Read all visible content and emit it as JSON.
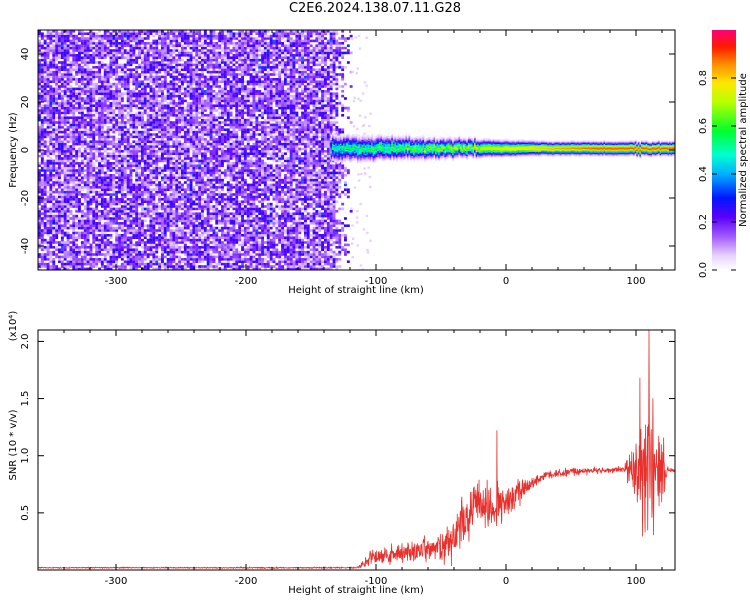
{
  "title": "C2E6.2024.138.07.11.G28",
  "colors": {
    "snr_line": "#e8302c",
    "spectrogram_noise": "#7a22e0",
    "background": "#ffffff",
    "axis": "#000000"
  },
  "chart_data": [
    {
      "type": "heatmap",
      "xlabel": "Height of straight line (km)",
      "ylabel": "Frequency (Hz)",
      "xlim": [
        -360,
        130
      ],
      "ylim": [
        -50,
        50
      ],
      "x_ticks": [
        -300,
        -200,
        -100,
        0,
        100
      ],
      "y_ticks": [
        -40,
        -20,
        0,
        20,
        40
      ],
      "colorbar": {
        "label": "Normalized spectral amplitude",
        "range": [
          0.0,
          1.0
        ],
        "ticks": [
          0.0,
          0.2,
          0.4,
          0.6,
          0.8
        ],
        "colormap": "rainbow (white - violet - blue - cyan - green - yellow - red - magenta)"
      },
      "features": {
        "broadband_noise_x_range": [
          -360,
          -120
        ],
        "noise_amplitude": 0.15,
        "signal_band_x_range": [
          -135,
          130
        ],
        "signal_center_hz": 0.5,
        "signal_halfwidth_hz": [
          4,
          2
        ],
        "signal_amplitude": [
          0.5,
          0.9
        ]
      }
    },
    {
      "type": "line",
      "xlabel": "Height of straight line (km)",
      "ylabel": "SNR (10 * v/v)",
      "y_multiplier": "(x10⁴)",
      "xlim": [
        -360,
        130
      ],
      "ylim": [
        0.0,
        2.1
      ],
      "x_ticks": [
        -300,
        -200,
        -100,
        0,
        100
      ],
      "y_ticks": [
        0.5,
        1.0,
        1.5,
        2.0
      ],
      "series": [
        {
          "envelope": [
            {
              "x": -360,
              "y": 0.02
            },
            {
              "x": -200,
              "y": 0.02
            },
            {
              "x": -115,
              "y": 0.02
            },
            {
              "x": -100,
              "y": 0.12
            },
            {
              "x": -80,
              "y": 0.15
            },
            {
              "x": -60,
              "y": 0.18
            },
            {
              "x": -45,
              "y": 0.22
            },
            {
              "x": -35,
              "y": 0.35
            },
            {
              "x": -25,
              "y": 0.55
            },
            {
              "x": -10,
              "y": 0.55
            },
            {
              "x": 0,
              "y": 0.6
            },
            {
              "x": 15,
              "y": 0.72
            },
            {
              "x": 30,
              "y": 0.83
            },
            {
              "x": 50,
              "y": 0.86
            },
            {
              "x": 70,
              "y": 0.87
            },
            {
              "x": 90,
              "y": 0.88
            },
            {
              "x": 100,
              "y": 0.9
            },
            {
              "x": 120,
              "y": 0.88
            },
            {
              "x": 130,
              "y": 0.87
            }
          ],
          "noise_amplitude": [
            {
              "x": -360,
              "y": 0.008
            },
            {
              "x": -115,
              "y": 0.01
            },
            {
              "x": -100,
              "y": 0.12
            },
            {
              "x": -60,
              "y": 0.15
            },
            {
              "x": -30,
              "y": 0.35
            },
            {
              "x": 0,
              "y": 0.25
            },
            {
              "x": 20,
              "y": 0.06
            },
            {
              "x": 90,
              "y": 0.03
            },
            {
              "x": 98,
              "y": 0.35
            },
            {
              "x": 105,
              "y": 0.75
            },
            {
              "x": 110,
              "y": 0.9
            },
            {
              "x": 118,
              "y": 0.5
            },
            {
              "x": 125,
              "y": 0.03
            },
            {
              "x": 130,
              "y": 0.02
            }
          ],
          "peaks": [
            {
              "x": -7,
              "y": 1.22
            },
            {
              "x": 103,
              "y": 1.68
            },
            {
              "x": 110,
              "y": 2.1
            },
            {
              "x": 113,
              "y": 1.5
            }
          ]
        }
      ]
    }
  ]
}
